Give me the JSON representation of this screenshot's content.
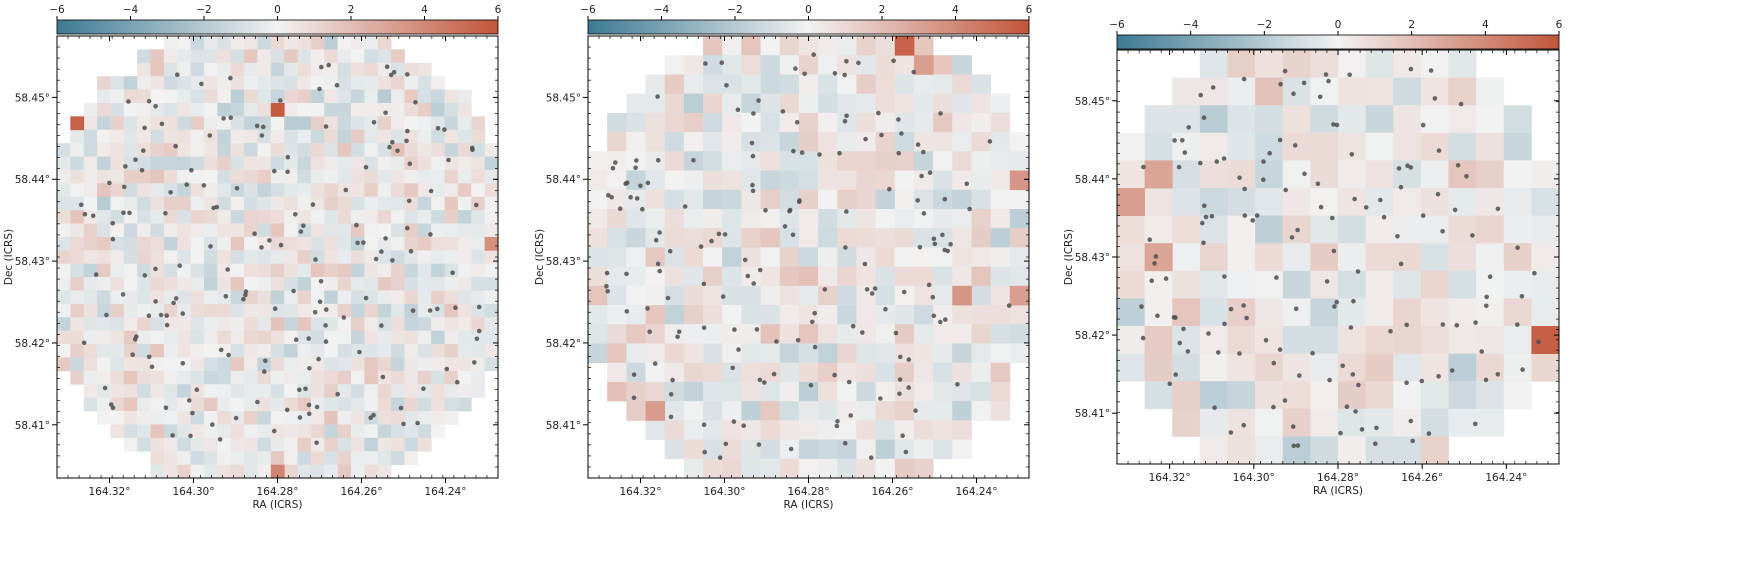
{
  "colorbar": {
    "ticks": [
      "−6",
      "−4",
      "−2",
      "0",
      "2",
      "4",
      "6"
    ],
    "min": -6,
    "max": 6,
    "colors": [
      "#3d7a93",
      "#f2f2f2",
      "#c2553a"
    ]
  },
  "marker_color": "#4d4d4d",
  "chart_data": [
    {
      "type": "heatmap",
      "title": "",
      "xlabel": "RA (ICRS)",
      "ylabel": "Dec (ICRS)",
      "xlim": [
        164.3325,
        164.2275
      ],
      "ylim": [
        58.4035,
        58.4575
      ],
      "xticks": [
        {
          "v": 164.32,
          "label": "164.32°"
        },
        {
          "v": 164.3,
          "label": "164.30°"
        },
        {
          "v": 164.28,
          "label": "164.28°"
        },
        {
          "v": 164.26,
          "label": "164.26°"
        },
        {
          "v": 164.24,
          "label": "164.24°"
        }
      ],
      "yticks": [
        {
          "v": 58.45,
          "label": "58.45°"
        },
        {
          "v": 58.44,
          "label": "58.44°"
        },
        {
          "v": 58.43,
          "label": "58.43°"
        },
        {
          "v": 58.42,
          "label": "58.42°"
        },
        {
          "v": 58.41,
          "label": "58.41°"
        }
      ],
      "grid": {
        "cols": 33,
        "rows": 33
      },
      "colorbar_range": [
        -6,
        6
      ],
      "hot_pixels": [
        {
          "ra": 164.327,
          "dec": 58.4462,
          "value": 5.5
        },
        {
          "ra": 164.2785,
          "dec": 58.4477,
          "value": 5.8
        },
        {
          "ra": 164.2805,
          "dec": 58.4045,
          "value": 4.2
        },
        {
          "ra": 164.2295,
          "dec": 58.4325,
          "value": 3.8
        }
      ],
      "n_sources": 175,
      "seed": 11
    },
    {
      "type": "heatmap",
      "title": "",
      "xlabel": "RA (ICRS)",
      "ylabel": "Dec (ICRS)",
      "xlim": [
        164.3325,
        164.2275
      ],
      "ylim": [
        58.4035,
        58.4575
      ],
      "xticks": [
        {
          "v": 164.32,
          "label": "164.32°"
        },
        {
          "v": 164.3,
          "label": "164.30°"
        },
        {
          "v": 164.28,
          "label": "164.28°"
        },
        {
          "v": 164.26,
          "label": "164.26°"
        },
        {
          "v": 164.24,
          "label": "164.24°"
        }
      ],
      "yticks": [
        {
          "v": 58.45,
          "label": "58.45°"
        },
        {
          "v": 58.44,
          "label": "58.44°"
        },
        {
          "v": 58.43,
          "label": "58.43°"
        },
        {
          "v": 58.42,
          "label": "58.42°"
        },
        {
          "v": 58.41,
          "label": "58.41°"
        }
      ],
      "grid": {
        "cols": 23,
        "rows": 23
      },
      "colorbar_range": [
        -6,
        6
      ],
      "hot_pixels": [
        {
          "ra": 164.2575,
          "dec": 58.4555,
          "value": 5.5
        },
        {
          "ra": 164.2525,
          "dec": 58.453,
          "value": 3.2
        },
        {
          "ra": 164.2295,
          "dec": 58.4395,
          "value": 3.5
        },
        {
          "ra": 164.2295,
          "dec": 58.4255,
          "value": 3.2
        },
        {
          "ra": 164.3175,
          "dec": 58.4125,
          "value": 3.3
        },
        {
          "ra": 164.2445,
          "dec": 58.4255,
          "value": 3.5
        }
      ],
      "n_sources": 165,
      "seed": 23
    },
    {
      "type": "heatmap",
      "title": "",
      "xlabel": "RA (ICRS)",
      "ylabel": "Dec (ICRS)",
      "xlim": [
        164.3325,
        164.2275
      ],
      "ylim": [
        58.4035,
        58.4565
      ],
      "xticks": [
        {
          "v": 164.32,
          "label": "164.32°"
        },
        {
          "v": 164.3,
          "label": "164.30°"
        },
        {
          "v": 164.28,
          "label": "164.28°"
        },
        {
          "v": 164.26,
          "label": "164.26°"
        },
        {
          "v": 164.24,
          "label": "164.24°"
        }
      ],
      "yticks": [
        {
          "v": 58.45,
          "label": "58.45°"
        },
        {
          "v": 58.44,
          "label": "58.44°"
        },
        {
          "v": 58.43,
          "label": "58.43°"
        },
        {
          "v": 58.42,
          "label": "58.42°"
        },
        {
          "v": 58.41,
          "label": "58.41°"
        }
      ],
      "grid": {
        "cols": 16,
        "rows": 15
      },
      "colorbar_range": [
        -6,
        6
      ],
      "hot_pixels": [
        {
          "ra": 164.2305,
          "dec": 58.4195,
          "value": 5.6
        },
        {
          "ra": 164.3295,
          "dec": 58.4385,
          "value": 3.2
        },
        {
          "ra": 164.3195,
          "dec": 58.4415,
          "value": 3.0
        },
        {
          "ra": 164.3195,
          "dec": 58.4285,
          "value": 3.0
        }
      ],
      "n_sources": 150,
      "seed": 37
    }
  ]
}
